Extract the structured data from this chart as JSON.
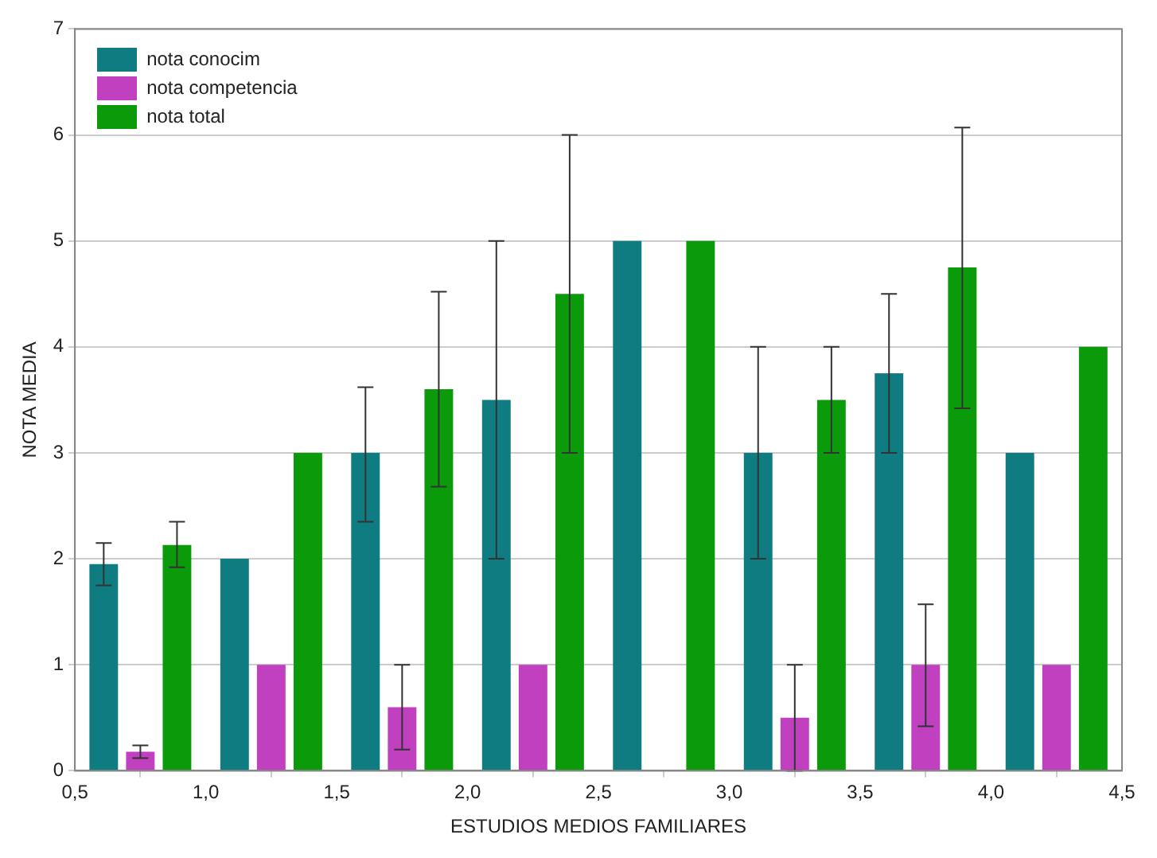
{
  "chart_data": {
    "type": "bar",
    "xlabel": "ESTUDIOS MEDIOS FAMILIARES",
    "ylabel": "NOTA MEDIA",
    "x": [
      0.75,
      1.25,
      1.75,
      2.25,
      2.75,
      3.25,
      3.75,
      4.25
    ],
    "series": [
      {
        "name": "nota conocim",
        "color": "#0e7c80",
        "values": [
          1.95,
          2,
          3,
          3.5,
          5,
          3,
          3.75,
          3
        ],
        "errors": [
          [
            1.75,
            2.15
          ],
          null,
          [
            2.35,
            3.62
          ],
          [
            2.0,
            5.0
          ],
          null,
          [
            2.0,
            4.0
          ],
          [
            3.0,
            4.5
          ],
          null
        ]
      },
      {
        "name": "nota competencia",
        "color": "#c040c0",
        "values": [
          0.18,
          1,
          0.6,
          1,
          null,
          0.5,
          1,
          1
        ],
        "errors": [
          [
            0.12,
            0.24
          ],
          null,
          [
            0.2,
            1.0
          ],
          null,
          null,
          [
            0.0,
            1.0
          ],
          [
            0.42,
            1.57
          ],
          null
        ]
      },
      {
        "name": "nota total",
        "color": "#0a9a0a",
        "values": [
          2.13,
          3,
          3.6,
          4.5,
          5,
          3.5,
          4.75,
          4
        ],
        "errors": [
          [
            1.92,
            2.35
          ],
          null,
          [
            2.68,
            4.52
          ],
          [
            3.0,
            6.0
          ],
          null,
          [
            3.0,
            4.0
          ],
          [
            3.42,
            6.07
          ],
          null
        ]
      }
    ],
    "xlim": [
      0.5,
      4.5
    ],
    "xticks": [
      {
        "value": 0.5,
        "label": "0,5"
      },
      {
        "value": 1,
        "label": "1,0"
      },
      {
        "value": 1.5,
        "label": "1,5"
      },
      {
        "value": 2,
        "label": "2,0"
      },
      {
        "value": 2.5,
        "label": "2,5"
      },
      {
        "value": 3,
        "label": "3,0"
      },
      {
        "value": 3.5,
        "label": "3,5"
      },
      {
        "value": 4,
        "label": "4,0"
      },
      {
        "value": 4.5,
        "label": "4,5"
      }
    ],
    "ylim": [
      0,
      7
    ],
    "yticks": [
      0,
      1,
      2,
      3,
      4,
      5,
      6,
      7
    ],
    "grid": "y",
    "legend": "top left"
  }
}
